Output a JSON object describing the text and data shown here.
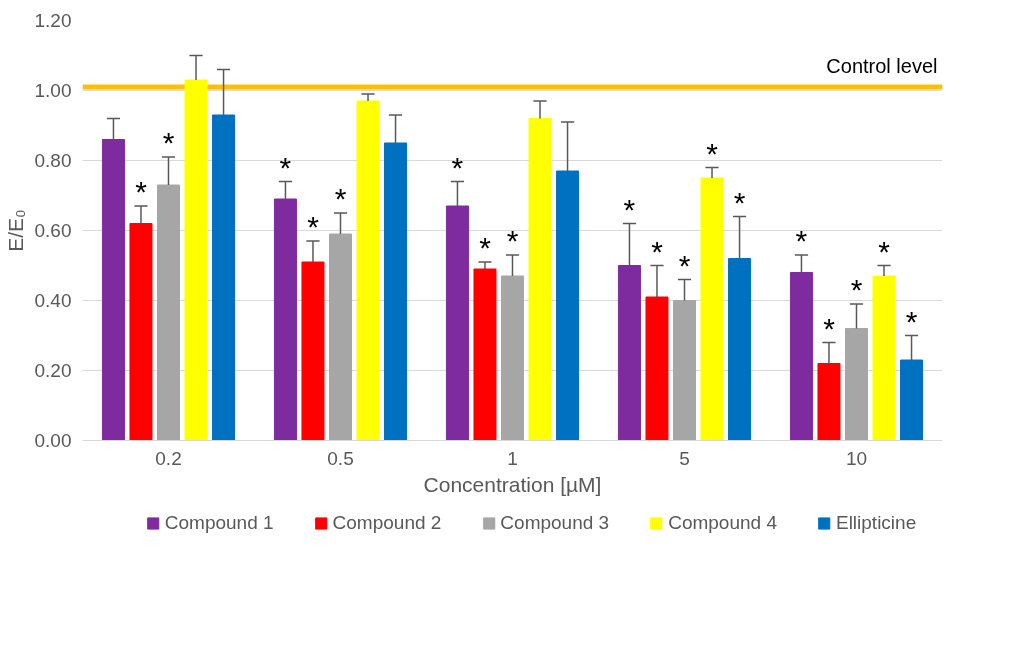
{
  "chart_data": {
    "type": "bar",
    "xlabel": "Concentration [µM]",
    "ylabel": "E/E₀",
    "categories": [
      "0.2",
      "0.5",
      "1",
      "5",
      "10"
    ],
    "series": [
      {
        "name": "Compound 1",
        "color": "#7f2ba0",
        "values": [
          0.86,
          0.69,
          0.67,
          0.5,
          0.48
        ],
        "value_labels": [
          null,
          "*",
          "*",
          "*",
          "*"
        ],
        "errors": [
          [
            0.86,
            0.92
          ],
          [
            0.69,
            0.74
          ],
          [
            0.67,
            0.74
          ],
          [
            0.5,
            0.62
          ],
          [
            0.48,
            0.53
          ]
        ]
      },
      {
        "name": "Compound 2",
        "color": "#ff0000",
        "values": [
          0.62,
          0.51,
          0.49,
          0.41,
          0.22
        ],
        "value_labels": [
          "*",
          "*",
          "*",
          "*",
          "*"
        ],
        "errors": [
          [
            0.62,
            0.67
          ],
          [
            0.51,
            0.57
          ],
          [
            0.49,
            0.51
          ],
          [
            0.41,
            0.5
          ],
          [
            0.22,
            0.28
          ]
        ]
      },
      {
        "name": "Compound 3",
        "color": "#a6a6a6",
        "values": [
          0.73,
          0.59,
          0.47,
          0.4,
          0.32
        ],
        "value_labels": [
          "*",
          "*",
          "*",
          "*",
          "*"
        ],
        "errors": [
          [
            0.73,
            0.81
          ],
          [
            0.59,
            0.65
          ],
          [
            0.47,
            0.53
          ],
          [
            0.4,
            0.46
          ],
          [
            0.32,
            0.39
          ]
        ]
      },
      {
        "name": "Compound 4",
        "color": "#ffff00",
        "values": [
          1.03,
          0.97,
          0.92,
          0.75,
          0.47
        ],
        "value_labels": [
          null,
          null,
          null,
          "*",
          "*"
        ],
        "errors": [
          [
            1.03,
            1.1
          ],
          [
            0.97,
            0.99
          ],
          [
            0.92,
            0.97
          ],
          [
            0.75,
            0.78
          ],
          [
            0.47,
            0.5
          ]
        ]
      },
      {
        "name": "Ellipticine",
        "color": "#0070c0",
        "values": [
          0.93,
          0.85,
          0.77,
          0.52,
          0.23
        ],
        "value_labels": [
          null,
          null,
          null,
          "*",
          "*"
        ],
        "errors": [
          [
            0.93,
            1.06
          ],
          [
            0.85,
            0.93
          ],
          [
            0.77,
            0.91
          ],
          [
            0.52,
            0.64
          ],
          [
            0.23,
            0.3
          ]
        ]
      }
    ],
    "ylim": [
      0,
      1.2
    ],
    "yticks": [
      {
        "value": 0,
        "label": "0.00"
      },
      {
        "value": 0.2,
        "label": "0.20"
      },
      {
        "value": 0.4,
        "label": "0.40"
      },
      {
        "value": 0.6,
        "label": "0.60"
      },
      {
        "value": 0.8,
        "label": "0.80"
      },
      {
        "value": 1.0,
        "label": "1.00"
      },
      {
        "value": 1.2,
        "label": "1.20"
      }
    ],
    "grid": "y",
    "legend": "bottom",
    "ref_lines": [
      {
        "axis": "y",
        "value": 1.01,
        "label": "Control level",
        "color": "#ffc000"
      }
    ]
  }
}
